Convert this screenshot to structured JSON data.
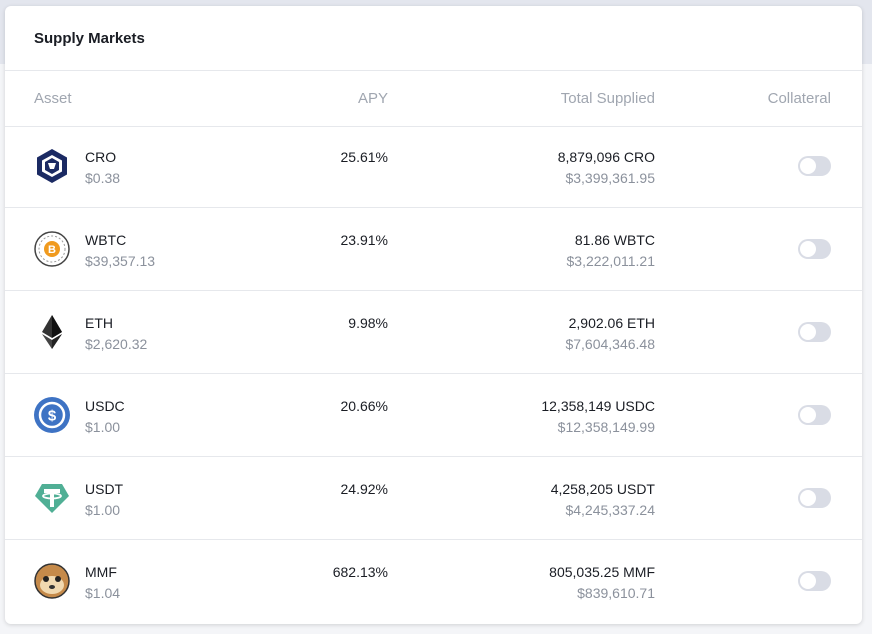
{
  "header": {
    "title": "Supply Markets"
  },
  "table": {
    "columns": [
      "Asset",
      "APY",
      "Total Supplied",
      "Collateral"
    ],
    "rows": [
      {
        "asset": "CRO",
        "price": "$0.38",
        "apy": "25.61%",
        "supplied": "8,879,096 CRO",
        "supplied_usd": "$3,399,361.95"
      },
      {
        "asset": "WBTC",
        "price": "$39,357.13",
        "apy": "23.91%",
        "supplied": "81.86 WBTC",
        "supplied_usd": "$3,222,011.21"
      },
      {
        "asset": "ETH",
        "price": "$2,620.32",
        "apy": "9.98%",
        "supplied": "2,902.06 ETH",
        "supplied_usd": "$7,604,346.48"
      },
      {
        "asset": "USDC",
        "price": "$1.00",
        "apy": "20.66%",
        "supplied": "12,358,149 USDC",
        "supplied_usd": "$12,358,149.99"
      },
      {
        "asset": "USDT",
        "price": "$1.00",
        "apy": "24.92%",
        "supplied": "4,258,205 USDT",
        "supplied_usd": "$4,245,337.24"
      },
      {
        "asset": "MMF",
        "price": "$1.04",
        "apy": "682.13%",
        "supplied": "805,035.25 MMF",
        "supplied_usd": "$839,610.71"
      }
    ]
  }
}
